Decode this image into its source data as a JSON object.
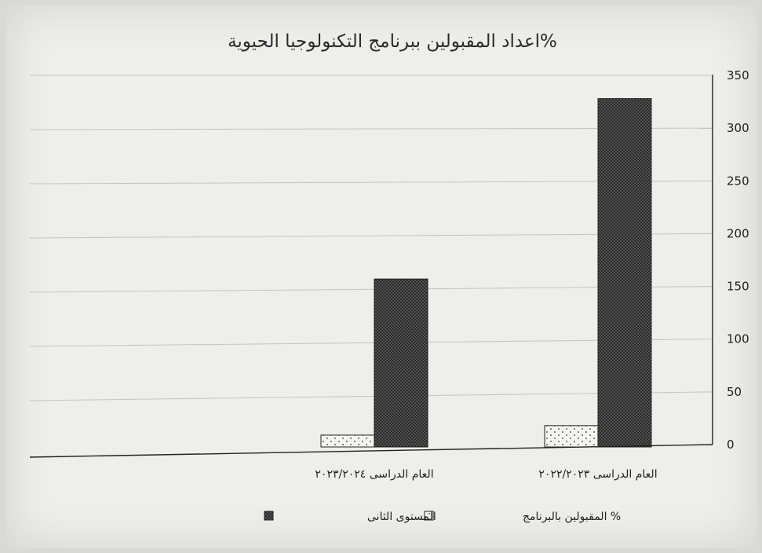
{
  "chart_data": {
    "type": "bar",
    "title": "%اعداد المقبولين ببرنامج التكنولوجيا الحيوية",
    "categories": [
      "العام الدراسى ٢٠٢٢/٢٠٢٣",
      "العام الدراسى ٢٠٢٣/٢٠٢٤"
    ],
    "series": [
      {
        "name": "% المقبولين بالبرنامج",
        "values": [
          18,
          9
        ],
        "pattern": "dots-light"
      },
      {
        "name": "المستوى الثانى",
        "values": [
          328,
          157
        ],
        "pattern": "dots-dark"
      }
    ],
    "y_ticks": [
      "0",
      "50",
      "100",
      "150",
      "200",
      "250",
      "300",
      "350"
    ],
    "ylim": [
      0,
      350
    ],
    "y_axis_side": "right",
    "x_axis_direction": "rtl",
    "grid": true,
    "legend_position": "bottom"
  }
}
